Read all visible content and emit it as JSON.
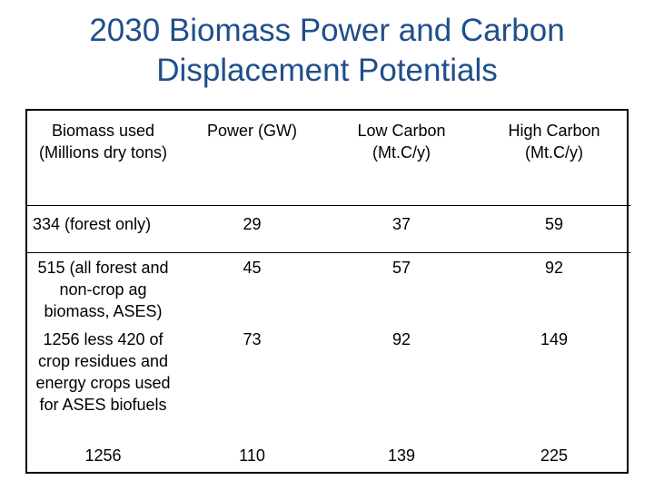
{
  "title": {
    "line1": "2030 Biomass Power and Carbon",
    "line2": "Displacement Potentials"
  },
  "table": {
    "headers": [
      "Biomass used (Millions dry tons)",
      "Power (GW)",
      "Low Carbon (Mt.C/y)",
      "High Carbon (Mt.C/y)"
    ],
    "rows": [
      {
        "biomass": "334 (forest only)",
        "power": "29",
        "low": "37",
        "high": "59"
      },
      {
        "biomass": "515 (all forest and non-crop ag biomass, ASES)",
        "power": "45",
        "low": "57",
        "high": "92"
      },
      {
        "biomass": "1256 less 420 of crop residues and energy crops used for ASES biofuels",
        "power": "73",
        "low": "92",
        "high": "149"
      },
      {
        "biomass": "1256",
        "power": "110",
        "low": "139",
        "high": "225"
      }
    ]
  }
}
